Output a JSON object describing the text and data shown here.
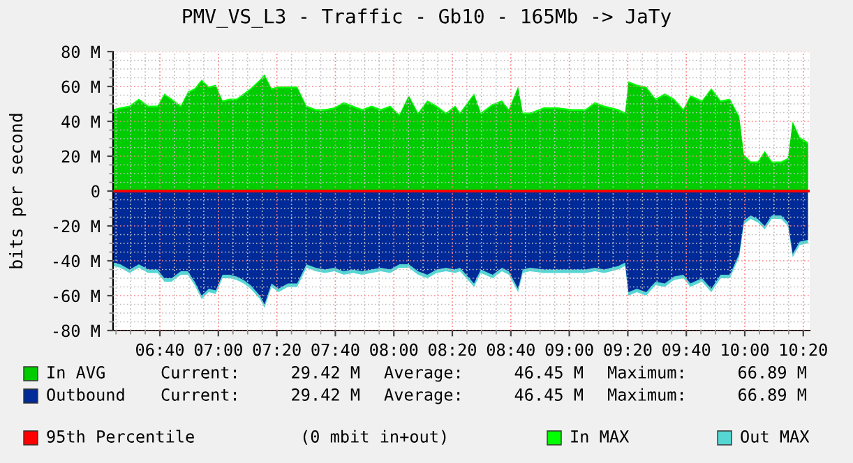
{
  "chart_data": {
    "type": "area",
    "title": "PMV_VS_L3 - Traffic - Gb10 - 165Mb -> JaTy",
    "ylabel": "bits per second",
    "x": [
      6.401,
      6.441,
      6.494,
      6.547,
      6.6,
      6.653,
      6.693,
      6.733,
      6.786,
      6.826,
      6.865,
      6.905,
      6.945,
      6.985,
      7.024,
      7.064,
      7.104,
      7.144,
      7.184,
      7.237,
      7.263,
      7.303,
      7.343,
      7.396,
      7.449,
      7.502,
      7.555,
      7.608,
      7.661,
      7.714,
      7.767,
      7.82,
      7.873,
      7.926,
      7.979,
      8.032,
      8.085,
      8.138,
      8.191,
      8.244,
      8.297,
      8.35,
      8.377,
      8.457,
      8.496,
      8.563,
      8.616,
      8.655,
      8.708,
      8.735,
      8.775,
      8.854,
      8.934,
      9.013,
      9.093,
      9.146,
      9.199,
      9.279,
      9.318,
      9.337,
      9.385,
      9.438,
      9.491,
      9.544,
      9.597,
      9.65,
      9.69,
      9.756,
      9.809,
      9.862,
      9.915,
      9.968,
      9.995,
      10.034,
      10.074,
      10.114,
      10.154,
      10.207,
      10.246,
      10.273,
      10.313,
      10.36
    ],
    "series": [
      {
        "name": "In MAX",
        "color": "#00ff00",
        "values": [
          47,
          48,
          49,
          53,
          49,
          49,
          56,
          53,
          49,
          57,
          59,
          64,
          60,
          61,
          52,
          53,
          53,
          56,
          59,
          64,
          67,
          59,
          60,
          60,
          60,
          49,
          47,
          47,
          48,
          51,
          49,
          47,
          49,
          47,
          49,
          44,
          55,
          45,
          52,
          49,
          45,
          49,
          45,
          56,
          45,
          50,
          52,
          47,
          60,
          45,
          45,
          48,
          48,
          47,
          47,
          51,
          49,
          47,
          45,
          63,
          61,
          60,
          53,
          56,
          53,
          47,
          55,
          52,
          59,
          52,
          53,
          43,
          21,
          17,
          17,
          23,
          17,
          17,
          19,
          40,
          31,
          28
        ]
      },
      {
        "name": "In AVG",
        "color": "#00cc00",
        "values": [
          46,
          47,
          48,
          52,
          48,
          48,
          55,
          52,
          48,
          56,
          58,
          63,
          59,
          60,
          51,
          52,
          52,
          55,
          58,
          63,
          66,
          58,
          59,
          59,
          59,
          48,
          46,
          46,
          47,
          50,
          48,
          46,
          48,
          46,
          48,
          43,
          54,
          44,
          51,
          48,
          44,
          48,
          44,
          55,
          44,
          49,
          51,
          46,
          59,
          44,
          44,
          47,
          47,
          46,
          46,
          50,
          48,
          46,
          44,
          62,
          60,
          59,
          52,
          55,
          52,
          46,
          54,
          51,
          58,
          51,
          52,
          42,
          20,
          16,
          16,
          22,
          16,
          16,
          18,
          39,
          30,
          27
        ]
      },
      {
        "name": "Out MAX",
        "color": "#55d6d3",
        "values": [
          -43,
          -44,
          -47,
          -44,
          -47,
          -47,
          -52,
          -52,
          -48,
          -48,
          -54,
          -62,
          -58,
          -59,
          -50,
          -50,
          -51,
          -53,
          -56,
          -62,
          -67,
          -55,
          -58,
          -55,
          -55,
          -44,
          -46,
          -47,
          -46,
          -48,
          -47,
          -48,
          -47,
          -46,
          -47,
          -44,
          -44,
          -48,
          -50,
          -47,
          -46,
          -47,
          -46,
          -55,
          -47,
          -50,
          -46,
          -48,
          -58,
          -47,
          -46,
          -47,
          -47,
          -47,
          -47,
          -46,
          -47,
          -45,
          -43,
          -60,
          -58,
          -60,
          -54,
          -55,
          -51,
          -50,
          -55,
          -52,
          -58,
          -50,
          -50,
          -38,
          -19,
          -16,
          -18,
          -22,
          -16,
          -16,
          -20,
          -38,
          -31,
          -30
        ]
      },
      {
        "name": "Outbound",
        "color": "#002a97",
        "values": [
          -41,
          -42,
          -45,
          -42,
          -45,
          -45,
          -50,
          -50,
          -46,
          -46,
          -52,
          -60,
          -56,
          -57,
          -48,
          -48,
          -49,
          -51,
          -54,
          -60,
          -65,
          -53,
          -56,
          -53,
          -53,
          -42,
          -44,
          -45,
          -44,
          -46,
          -45,
          -46,
          -45,
          -44,
          -45,
          -42,
          -42,
          -46,
          -48,
          -45,
          -44,
          -45,
          -44,
          -53,
          -45,
          -48,
          -44,
          -46,
          -56,
          -45,
          -44,
          -45,
          -45,
          -45,
          -45,
          -44,
          -45,
          -43,
          -41,
          -58,
          -56,
          -58,
          -52,
          -53,
          -49,
          -48,
          -53,
          -50,
          -56,
          -48,
          -48,
          -36,
          -17,
          -14,
          -16,
          -20,
          -14,
          -14,
          -18,
          -36,
          -29,
          -28
        ]
      }
    ],
    "ref_lines": [
      {
        "axis": "y",
        "value": 0,
        "label": "95th Percentile",
        "color": "#ff0000"
      }
    ],
    "annotations": [
      "Current:",
      "29.42 M",
      "Average:",
      "46.45 M",
      "Maximum:",
      "66.89 M",
      "Current:",
      "29.42 M",
      "Average:",
      "46.45 M",
      "Maximum:",
      "66.89 M",
      "(0 mbit in+out)"
    ],
    "xlim": [
      6.4,
      10.37
    ],
    "ylim": [
      -80,
      80
    ],
    "xticks": [
      {
        "value": 6.6667,
        "label": "06:40"
      },
      {
        "value": 7,
        "label": "07:00"
      },
      {
        "value": 7.3333,
        "label": "07:20"
      },
      {
        "value": 7.6667,
        "label": "07:40"
      },
      {
        "value": 8,
        "label": "08:00"
      },
      {
        "value": 8.3333,
        "label": "08:20"
      },
      {
        "value": 8.6667,
        "label": "08:40"
      },
      {
        "value": 9,
        "label": "09:00"
      },
      {
        "value": 9.3333,
        "label": "09:20"
      },
      {
        "value": 9.6667,
        "label": "09:40"
      },
      {
        "value": 10,
        "label": "10:00"
      },
      {
        "value": 10.3333,
        "label": "10:20"
      }
    ],
    "yticks": [
      {
        "value": -80,
        "label": "-80 M"
      },
      {
        "value": -60,
        "label": "-60 M"
      },
      {
        "value": -40,
        "label": "-40 M"
      },
      {
        "value": -20,
        "label": "-20 M"
      },
      {
        "value": 0,
        "label": "0"
      },
      {
        "value": 20,
        "label": "20 M"
      },
      {
        "value": 40,
        "label": "40 M"
      },
      {
        "value": 60,
        "label": "60 M"
      },
      {
        "value": 80,
        "label": "80 M"
      }
    ],
    "grid": true,
    "legend": "bottom"
  }
}
